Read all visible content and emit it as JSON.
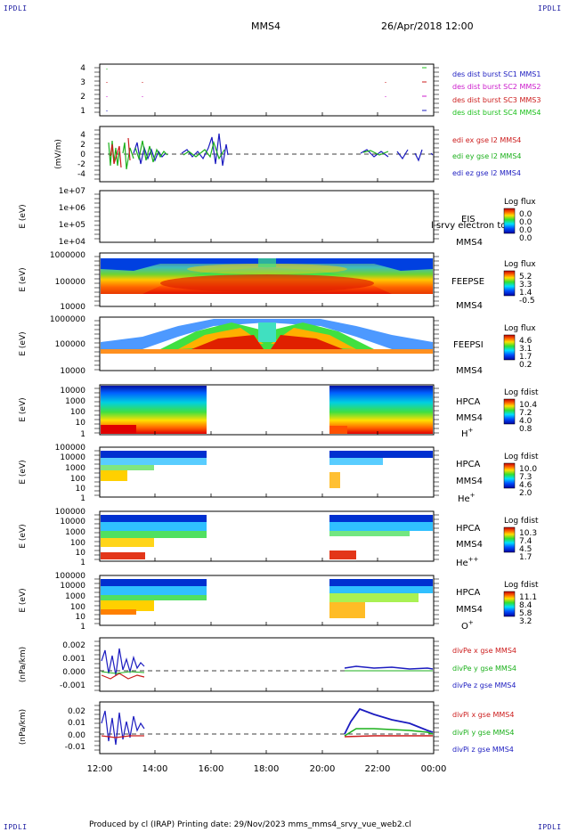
{
  "corner_label": "IPDLI",
  "header": {
    "spacecraft": "MMS4",
    "datetime": "26/Apr/2018 12:00"
  },
  "footer": {
    "text": "Produced by cl (IRAP)   Printing date: 29/Nov/2023   mms_mms4_srvy_vue_web2.cl"
  },
  "time_axis": {
    "ticks": [
      "12:00",
      "14:00",
      "16:00",
      "18:00",
      "20:00",
      "22:00",
      "00:00"
    ]
  },
  "panels": {
    "burst": {
      "yticks": [
        "4",
        "3",
        "2",
        "1"
      ],
      "legend": [
        {
          "label": "des dist burst SC1 MMS1",
          "color": "#1c1cc0"
        },
        {
          "label": "des dist burst SC2 MMS2",
          "color": "#cc1ccc"
        },
        {
          "label": "des dist burst SC3 MMS3",
          "color": "#cc1c1c"
        },
        {
          "label": "des dist burst SC4 MMS4",
          "color": "#1cc01c"
        }
      ]
    },
    "edi": {
      "ylabel": "(mV/m)",
      "yticks": [
        "4",
        "2",
        "0",
        "-2",
        "-4"
      ],
      "legend": [
        {
          "label": "edi ex gse l2 MMS4",
          "color": "#cc1c1c"
        },
        {
          "label": "edi ey gse l2 MMS4",
          "color": "#1cb01c"
        },
        {
          "label": "edi ez gse l2 MMS4",
          "color": "#1c1cc0"
        }
      ]
    },
    "eis": {
      "ylabel": "E (eV)",
      "yticks": [
        "1e+07",
        "1e+06",
        "1e+05",
        "1e+04"
      ],
      "instrument": "EIS",
      "sc": "MMS4",
      "overlay": "l srvy electron to",
      "cbar_title": "Log flux",
      "cbar_ticks": [
        "0.0",
        "0.0",
        "0.0",
        "0.0"
      ]
    },
    "feeps_e": {
      "ylabel": "E (eV)",
      "yticks": [
        "1000000",
        "100000",
        "10000"
      ],
      "instrument": "FEEPSE",
      "sc": "MMS4",
      "cbar_title": "Log flux",
      "cbar_ticks": [
        "5.2",
        "3.3",
        "1.4",
        "-0.5"
      ]
    },
    "feeps_i": {
      "ylabel": "E (eV)",
      "yticks": [
        "1000000",
        "100000",
        "10000"
      ],
      "instrument": "FEEPSI",
      "sc": "MMS4",
      "cbar_title": "Log flux",
      "cbar_ticks": [
        "4.6",
        "3.1",
        "1.7",
        "0.2"
      ]
    },
    "hpca_h": {
      "ylabel": "E (eV)",
      "yticks": [
        "10000",
        "1000",
        "100",
        "10",
        "1"
      ],
      "instrument": "HPCA",
      "sc": "MMS4",
      "species": "H",
      "charge": "+",
      "cbar_title": "Log fdist",
      "cbar_ticks": [
        "10.4",
        "7.2",
        "4.0",
        "0.8"
      ]
    },
    "hpca_he1": {
      "ylabel": "E (eV)",
      "yticks": [
        "100000",
        "10000",
        "1000",
        "100",
        "10",
        "1"
      ],
      "instrument": "HPCA",
      "sc": "MMS4",
      "species": "He",
      "charge": "+",
      "cbar_title": "Log fdist",
      "cbar_ticks": [
        "10.0",
        "7.3",
        "4.6",
        "2.0"
      ]
    },
    "hpca_he2": {
      "ylabel": "E (eV)",
      "yticks": [
        "100000",
        "10000",
        "1000",
        "100",
        "10",
        "1"
      ],
      "instrument": "HPCA",
      "sc": "MMS4",
      "species": "He",
      "charge": "++",
      "cbar_title": "Log fdist",
      "cbar_ticks": [
        "10.3",
        "7.4",
        "4.5",
        "1.7"
      ]
    },
    "hpca_o": {
      "ylabel": "E (eV)",
      "yticks": [
        "100000",
        "10000",
        "1000",
        "100",
        "10",
        "1"
      ],
      "instrument": "HPCA",
      "sc": "MMS4",
      "species": "O",
      "charge": "+",
      "cbar_title": "Log fdist",
      "cbar_ticks": [
        "11.1",
        "8.4",
        "5.8",
        "3.2"
      ]
    },
    "divpe": {
      "ylabel": "(nPa/km)",
      "yticks": [
        "0.002",
        "0.001",
        "0.000",
        "-0.001"
      ],
      "legend": [
        {
          "label": "divPe x gse MMS4",
          "color": "#cc1c1c"
        },
        {
          "label": "divPe y gse MMS4",
          "color": "#1cb01c"
        },
        {
          "label": "divPe z gse MMS4",
          "color": "#1c1cc0"
        }
      ]
    },
    "divpi": {
      "ylabel": "(nPa/km)",
      "yticks": [
        "0.02",
        "0.01",
        "0.00",
        "-0.01"
      ],
      "legend": [
        {
          "label": "divPi x gse MMS4",
          "color": "#cc1c1c"
        },
        {
          "label": "divPi y gse MMS4",
          "color": "#1cb01c"
        },
        {
          "label": "divPi z gse MMS4",
          "color": "#1c1cc0"
        }
      ]
    }
  },
  "chart_data": {
    "type": "line",
    "title": "MMS4  26/Apr/2018 12:00",
    "x_range": [
      "12:00",
      "00:00"
    ],
    "data_gap": [
      "16:00",
      "20:30"
    ],
    "panels": [
      "burst",
      "edi",
      "eis",
      "feeps_e",
      "feeps_i",
      "hpca_h",
      "hpca_he1",
      "hpca_he2",
      "hpca_o",
      "divpe",
      "divpi"
    ]
  }
}
